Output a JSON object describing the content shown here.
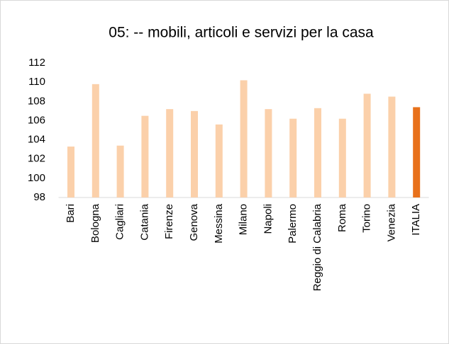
{
  "chart_data": {
    "type": "bar",
    "title": "05: -- mobili, articoli e servizi per la casa",
    "categories": [
      "Bari",
      "Bologna",
      "Cagliari",
      "Catania",
      "Firenze",
      "Genova",
      "Messina",
      "Milano",
      "Napoli",
      "Palermo",
      "Reggio di Calabria",
      "Roma",
      "Torino",
      "Venezia",
      "ITALIA"
    ],
    "values": [
      103.3,
      109.8,
      103.4,
      106.5,
      107.2,
      107.0,
      105.6,
      110.2,
      107.2,
      106.2,
      107.3,
      106.2,
      108.8,
      108.5,
      107.4
    ],
    "colors": [
      "#fbd0aa",
      "#fbd0aa",
      "#fbd0aa",
      "#fbd0aa",
      "#fbd0aa",
      "#fbd0aa",
      "#fbd0aa",
      "#fbd0aa",
      "#fbd0aa",
      "#fbd0aa",
      "#fbd0aa",
      "#fbd0aa",
      "#fbd0aa",
      "#fbd0aa",
      "#e8711b"
    ],
    "ylim": [
      98,
      112
    ],
    "yticks": [
      98,
      100,
      102,
      104,
      106,
      108,
      110,
      112
    ],
    "grid": false
  }
}
